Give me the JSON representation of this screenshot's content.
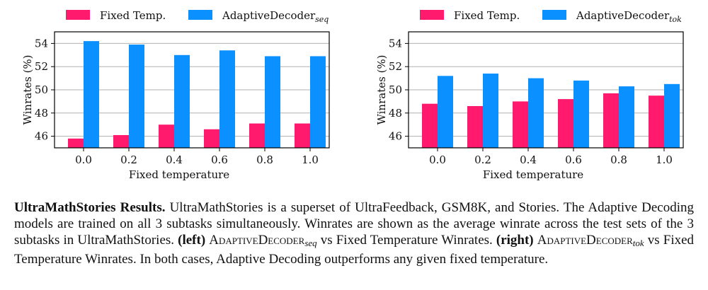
{
  "colors": {
    "fixed": "#ff1a6e",
    "adaptive": "#0a90ff",
    "grid": "#b0b0b0"
  },
  "chart_data": [
    {
      "type": "bar",
      "categories": [
        "0.0",
        "0.2",
        "0.4",
        "0.6",
        "0.8",
        "1.0"
      ],
      "series": [
        {
          "name": "Fixed Temp.",
          "values": [
            45.8,
            46.1,
            47.0,
            46.6,
            47.1,
            47.1
          ]
        },
        {
          "name": "AdaptiveDecoder",
          "name_subscript": "seq",
          "values": [
            54.2,
            53.9,
            53.0,
            53.4,
            52.9,
            52.9
          ]
        }
      ],
      "xlabel": "Fixed temperature",
      "ylabel": "Winrates (%)",
      "ylim": [
        45,
        55
      ],
      "yticks": [
        "46",
        "48",
        "50",
        "52",
        "54"
      ],
      "grid": true,
      "legend": "top"
    },
    {
      "type": "bar",
      "categories": [
        "0.0",
        "0.2",
        "0.4",
        "0.6",
        "0.8",
        "1.0"
      ],
      "series": [
        {
          "name": "Fixed Temp.",
          "values": [
            48.8,
            48.6,
            49.0,
            49.2,
            49.7,
            49.5
          ]
        },
        {
          "name": "AdaptiveDecoder",
          "name_subscript": "tok",
          "values": [
            51.2,
            51.4,
            51.0,
            50.8,
            50.3,
            50.5
          ]
        }
      ],
      "xlabel": "Fixed temperature",
      "ylabel": "Winrates (%)",
      "ylim": [
        45,
        55
      ],
      "yticks": [
        "46",
        "48",
        "50",
        "52",
        "54"
      ],
      "grid": true,
      "legend": "top"
    }
  ],
  "caption": {
    "title": "UltraMathStories Results.",
    "s1": "UltraMathStories is a superset of UltraFeedback, GSM8K, and Stories. The Adaptive Decoding models are trained on all 3 subtasks simultaneously. Winrates are shown as the average winrate across the test sets of the 3 subtasks in UltraMathStories.",
    "left_label": "(left)",
    "decoder_name": "AdaptiveDecoder",
    "sub_seq": "seq",
    "s2": "vs Fixed Temperature Winrates.",
    "right_label": "(right)",
    "sub_tok": "tok",
    "s3": "vs Fixed Temperature Winrates. In both cases, Adaptive Decoding outperforms any given fixed temperature."
  }
}
